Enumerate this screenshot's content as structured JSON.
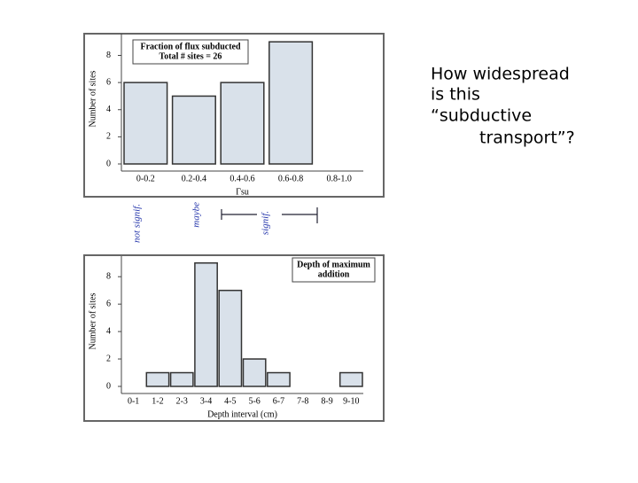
{
  "chart_data": [
    {
      "type": "bar",
      "legend_lines": [
        "Fraction of flux subducted",
        "Total # sites = 26"
      ],
      "ylabel": "Number of sites",
      "xlabel": "Γsu",
      "categories": [
        "0-0.2",
        "0.2-0.4",
        "0.4-0.6",
        "0.6-0.8",
        "0.8-1.0"
      ],
      "values": [
        6,
        5,
        6,
        9,
        0
      ],
      "color": "#d9e1ea",
      "ylim": [
        0,
        9.6
      ],
      "yticks": [
        0,
        2,
        4,
        6,
        8
      ],
      "annotations": [
        "not signif.",
        "maybe",
        "signif."
      ]
    },
    {
      "type": "bar",
      "legend_lines": [
        "Depth of maximum",
        "addition"
      ],
      "ylabel": "Number of sites",
      "xlabel": "Depth interval (cm)",
      "categories": [
        "0-1",
        "1-2",
        "2-3",
        "3-4",
        "4-5",
        "5-6",
        "6-7",
        "7-8",
        "8-9",
        "9-10"
      ],
      "values": [
        0,
        1,
        1,
        9,
        7,
        2,
        1,
        0,
        0,
        1
      ],
      "color": "#d9e1ea",
      "ylim": [
        0,
        9.5
      ],
      "yticks": [
        0,
        2,
        4,
        6,
        8
      ]
    }
  ],
  "text": {
    "lines": [
      "How widespread",
      "is this",
      "“subductive",
      "transport”?"
    ]
  }
}
